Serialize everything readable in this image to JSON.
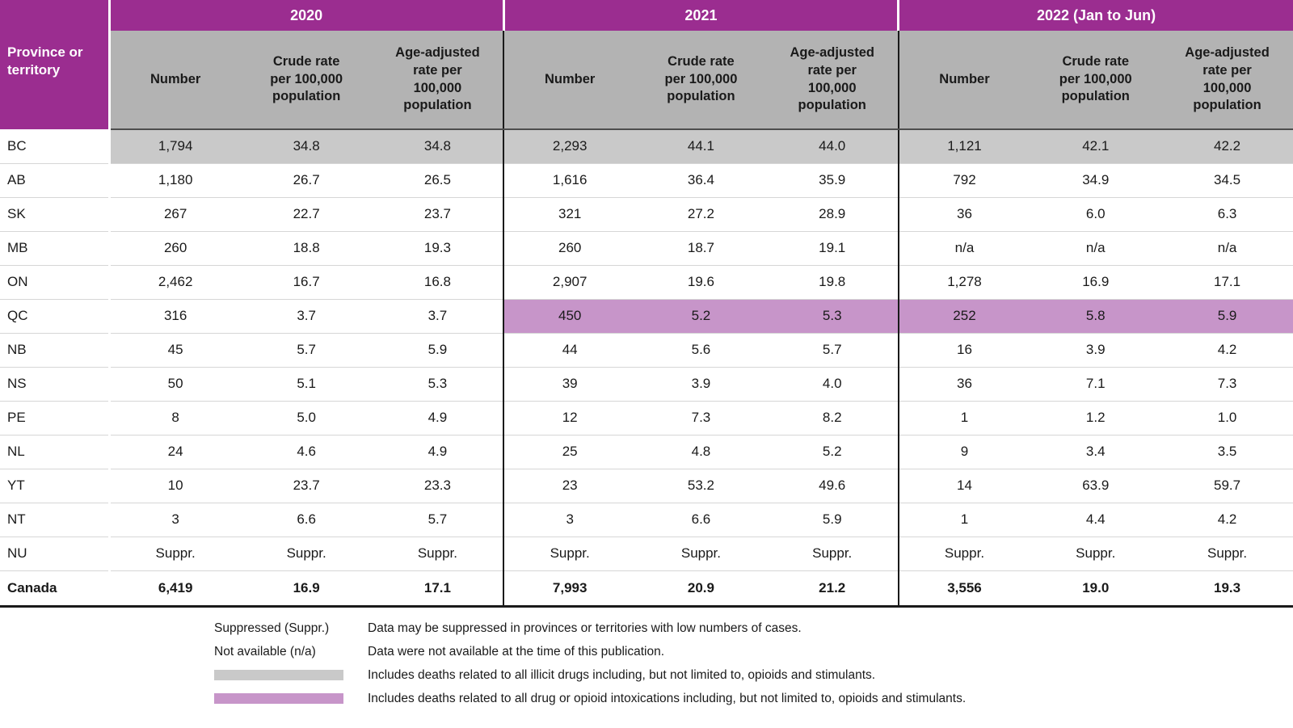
{
  "colors": {
    "header_purple": "#9b2d90",
    "subheader_gray": "#b3b3b3",
    "row_gray": "#c9c9c9",
    "row_purple": "#c795c9",
    "border_light": "#d6d6d6",
    "border_dark": "#1a1a1a",
    "text_dark": "#1a1a1a"
  },
  "chart_data": {
    "type": "table",
    "row_header": "Province or territory",
    "column_groups": [
      "2020",
      "2021",
      "2022 (Jan to Jun)"
    ],
    "sub_columns": [
      "Number",
      "Crude rate\nper 100,000\npopulation",
      "Age-adjusted\nrate per\n100,000\npopulation"
    ],
    "rows": [
      {
        "label": "BC",
        "values": [
          "1,794",
          "34.8",
          "34.8",
          "2,293",
          "44.1",
          "44.0",
          "1,121",
          "42.1",
          "42.2"
        ],
        "highlight": "gray",
        "highlight_cols": [
          0,
          1,
          2,
          3,
          4,
          5,
          6,
          7,
          8
        ],
        "bold": false
      },
      {
        "label": "AB",
        "values": [
          "1,180",
          "26.7",
          "26.5",
          "1,616",
          "36.4",
          "35.9",
          "792",
          "34.9",
          "34.5"
        ],
        "highlight": null,
        "highlight_cols": [],
        "bold": false
      },
      {
        "label": "SK",
        "values": [
          "267",
          "22.7",
          "23.7",
          "321",
          "27.2",
          "28.9",
          "36",
          "6.0",
          "6.3"
        ],
        "highlight": null,
        "highlight_cols": [],
        "bold": false
      },
      {
        "label": "MB",
        "values": [
          "260",
          "18.8",
          "19.3",
          "260",
          "18.7",
          "19.1",
          "n/a",
          "n/a",
          "n/a"
        ],
        "highlight": null,
        "highlight_cols": [],
        "bold": false
      },
      {
        "label": "ON",
        "values": [
          "2,462",
          "16.7",
          "16.8",
          "2,907",
          "19.6",
          "19.8",
          "1,278",
          "16.9",
          "17.1"
        ],
        "highlight": null,
        "highlight_cols": [],
        "bold": false
      },
      {
        "label": "QC",
        "values": [
          "316",
          "3.7",
          "3.7",
          "450",
          "5.2",
          "5.3",
          "252",
          "5.8",
          "5.9"
        ],
        "highlight": "purple",
        "highlight_cols": [
          3,
          4,
          5,
          6,
          7,
          8
        ],
        "bold": false
      },
      {
        "label": "NB",
        "values": [
          "45",
          "5.7",
          "5.9",
          "44",
          "5.6",
          "5.7",
          "16",
          "3.9",
          "4.2"
        ],
        "highlight": null,
        "highlight_cols": [],
        "bold": false
      },
      {
        "label": "NS",
        "values": [
          "50",
          "5.1",
          "5.3",
          "39",
          "3.9",
          "4.0",
          "36",
          "7.1",
          "7.3"
        ],
        "highlight": null,
        "highlight_cols": [],
        "bold": false
      },
      {
        "label": "PE",
        "values": [
          "8",
          "5.0",
          "4.9",
          "12",
          "7.3",
          "8.2",
          "1",
          "1.2",
          "1.0"
        ],
        "highlight": null,
        "highlight_cols": [],
        "bold": false
      },
      {
        "label": "NL",
        "values": [
          "24",
          "4.6",
          "4.9",
          "25",
          "4.8",
          "5.2",
          "9",
          "3.4",
          "3.5"
        ],
        "highlight": null,
        "highlight_cols": [],
        "bold": false
      },
      {
        "label": "YT",
        "values": [
          "10",
          "23.7",
          "23.3",
          "23",
          "53.2",
          "49.6",
          "14",
          "63.9",
          "59.7"
        ],
        "highlight": null,
        "highlight_cols": [],
        "bold": false
      },
      {
        "label": "NT",
        "values": [
          "3",
          "6.6",
          "5.7",
          "3",
          "6.6",
          "5.9",
          "1",
          "4.4",
          "4.2"
        ],
        "highlight": null,
        "highlight_cols": [],
        "bold": false
      },
      {
        "label": "NU",
        "values": [
          "Suppr.",
          "Suppr.",
          "Suppr.",
          "Suppr.",
          "Suppr.",
          "Suppr.",
          "Suppr.",
          "Suppr.",
          "Suppr."
        ],
        "highlight": null,
        "highlight_cols": [],
        "bold": false
      },
      {
        "label": "Canada",
        "values": [
          "6,419",
          "16.9",
          "17.1",
          "7,993",
          "20.9",
          "21.2",
          "3,556",
          "19.0",
          "19.3"
        ],
        "highlight": null,
        "highlight_cols": [],
        "bold": true
      }
    ]
  },
  "legend": [
    {
      "label": "Suppressed (Suppr.)",
      "swatch": null,
      "text": "Data may be suppressed in provinces or territories with low numbers of cases."
    },
    {
      "label": "Not available (n/a)",
      "swatch": null,
      "text": "Data were not available at the time of this publication."
    },
    {
      "label": null,
      "swatch": "gray",
      "text": "Includes deaths related to all illicit drugs including, but not limited to, opioids and stimulants."
    },
    {
      "label": null,
      "swatch": "purple",
      "text": "Includes deaths related to all drug or opioid intoxications including, but not limited to, opioids and stimulants."
    }
  ]
}
